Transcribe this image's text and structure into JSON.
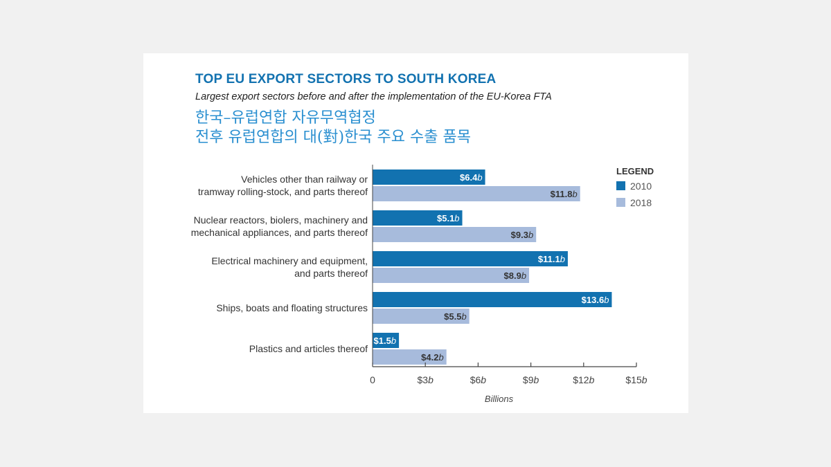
{
  "chart_data": {
    "type": "bar",
    "orientation": "horizontal",
    "title": "TOP EU EXPORT SECTORS TO SOUTH KOREA",
    "subtitle": "Largest export sectors before and after the implementation of the EU-Korea FTA",
    "korean_title": [
      "한국–유럽연합 자유무역협정",
      "전후 유럽연합의 대(對)한국 주요 수출 품목"
    ],
    "categories": [
      [
        "Vehicles other than railway or",
        "tramway rolling-stock, and parts thereof"
      ],
      [
        "Nuclear reactors, biolers, machinery and",
        "mechanical appliances, and parts thereof"
      ],
      [
        "Electrical machinery and equipment,",
        "and parts thereof"
      ],
      [
        "Ships, boats and floating structures"
      ],
      [
        "Plastics and articles thereof"
      ]
    ],
    "series": [
      {
        "name": "2010",
        "color": "#1272b0",
        "values": [
          6.4,
          5.1,
          11.1,
          13.6,
          1.5
        ],
        "labels": [
          "$6.4",
          "$5.1",
          "$11.1",
          "$13.6",
          "$1.5"
        ]
      },
      {
        "name": "2018",
        "color": "#a7bbdc",
        "values": [
          11.8,
          9.3,
          8.9,
          5.5,
          4.2
        ],
        "labels": [
          "$11.8",
          "$9.3",
          "$8.9",
          "$5.5",
          "$4.2"
        ]
      }
    ],
    "unit_suffix": "b",
    "xlim": [
      0,
      15
    ],
    "xticks": [
      0,
      3,
      6,
      9,
      12,
      15
    ],
    "xtick_labels": [
      [
        "0",
        ""
      ],
      [
        "$3",
        "b"
      ],
      [
        "$6",
        "b"
      ],
      [
        "$9",
        "b"
      ],
      [
        "$12",
        "b"
      ],
      [
        "$15",
        "b"
      ]
    ],
    "xlabel": "Billions",
    "legend_title": "LEGEND",
    "legend_placement": "top-right"
  }
}
